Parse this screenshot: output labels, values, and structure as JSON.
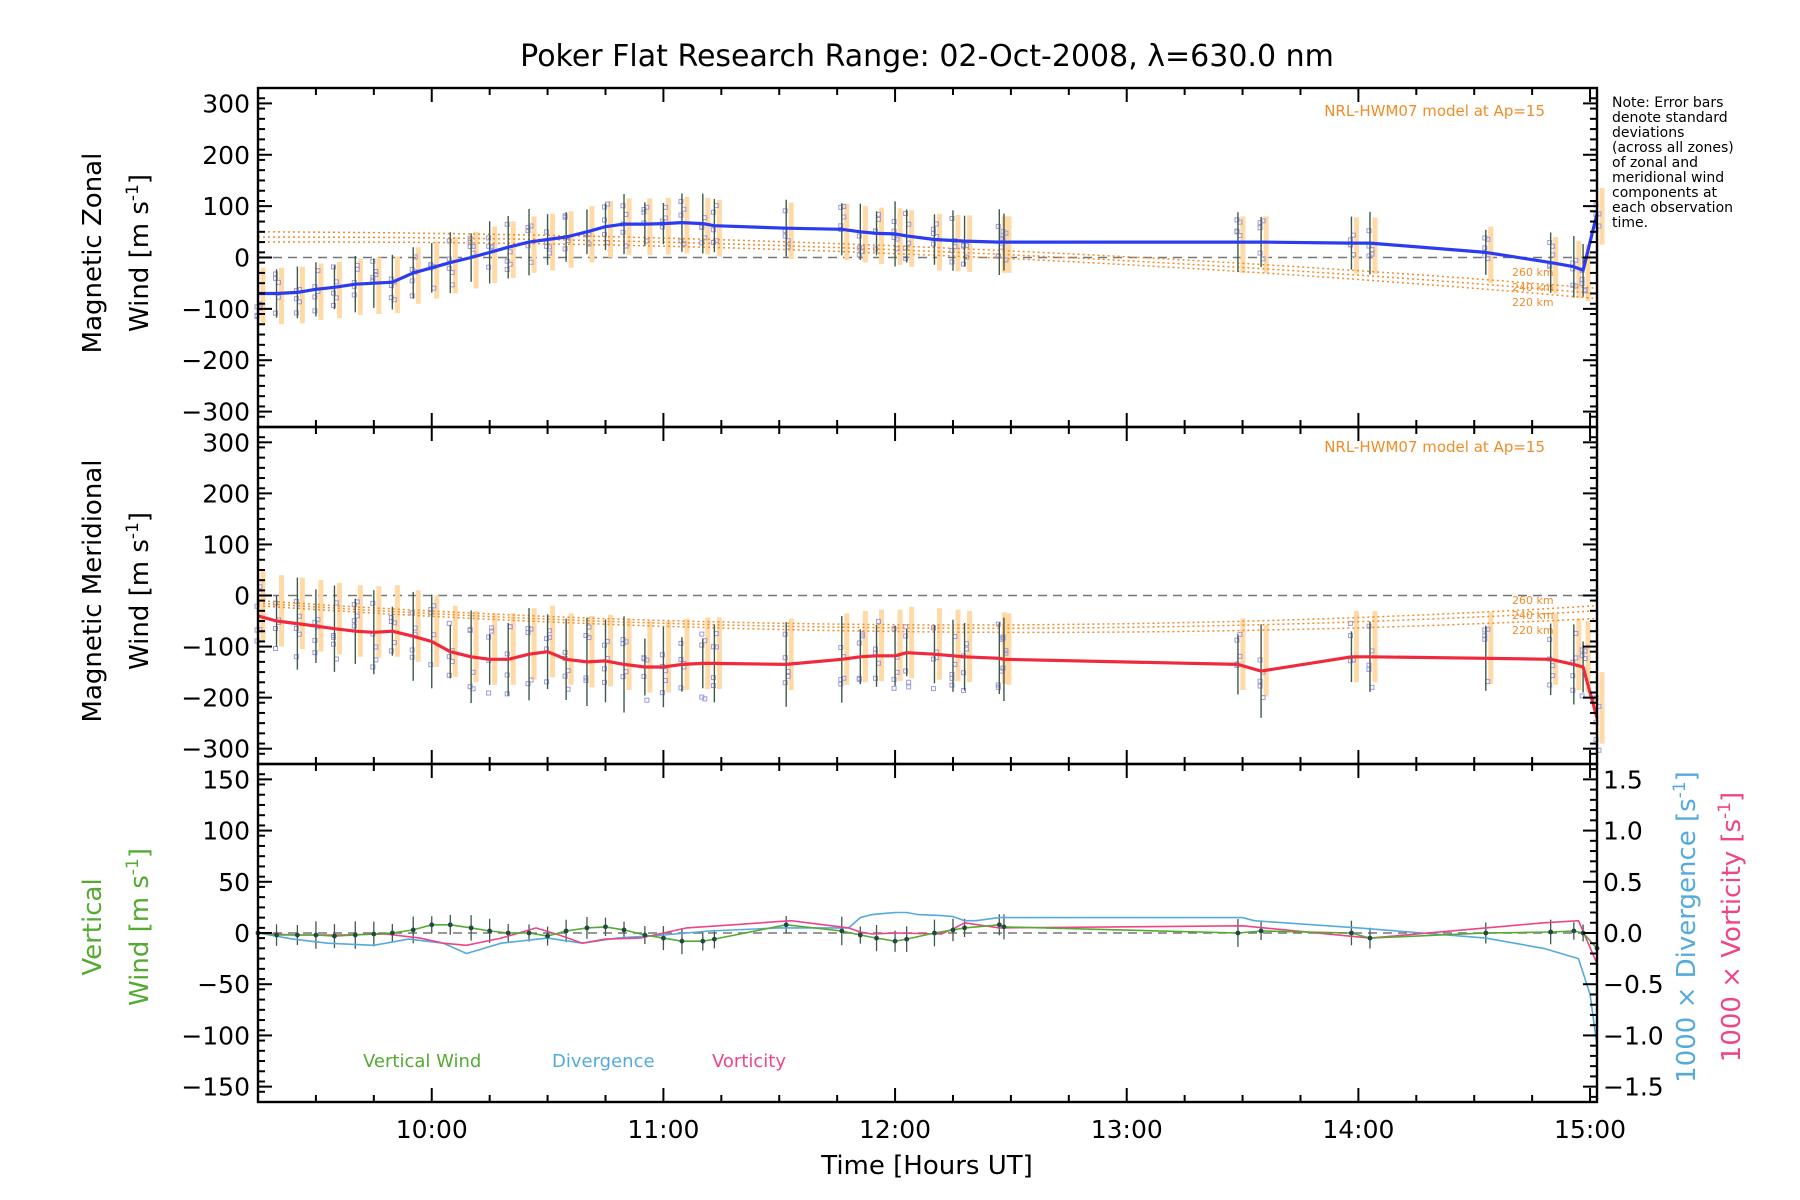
{
  "title": "Poker Flat Research Range: 02-Oct-2008, λ=630.0 nm",
  "note_lines": [
    "Note: Error bars",
    "denote standard",
    "deviations",
    "(across all zones)",
    "of zonal and",
    "meridional wind",
    "components at",
    "each observation",
    "time."
  ],
  "colors": {
    "zonal": "#2b3cf0",
    "meridional": "#f02a3c",
    "vertical": "#55aa33",
    "divergence": "#55aadd",
    "vorticity": "#ee4488",
    "model": "#f08c28",
    "model_bar": "#ffd9a6",
    "scatter": "#9f99dc",
    "errbar": "#3e5a4a",
    "marker": "#1f4a44",
    "zero_line": "#777777",
    "frame": "#000000"
  },
  "chart_data": [
    {
      "type": "line",
      "panel": "zonal",
      "ylabel_line1": "Magnetic Zonal",
      "ylabel_line2_word": "Wind",
      "ylabel_units": "[m s",
      "ylabel_units_exp": "-1",
      "ylabel_units_close": "]",
      "xlim": [
        9.25,
        15.03
      ],
      "ylim": [
        -330,
        330
      ],
      "yticks": [
        -300,
        -200,
        -100,
        0,
        100,
        200,
        300
      ],
      "ytick_labels": [
        "−300",
        "−200",
        "−100",
        "0",
        "100",
        "200",
        "300"
      ],
      "model_label": "NRL-HWM07 model at Ap=15",
      "model_altitudes": [
        "260 km",
        "240 km",
        "220 km"
      ],
      "series": [
        {
          "x": [
            9.25,
            9.33,
            9.42,
            9.5,
            9.58,
            9.67,
            9.75,
            9.83,
            9.92,
            10.0,
            10.08,
            10.17,
            10.25,
            10.33,
            10.42,
            10.5,
            10.58,
            10.67,
            10.75,
            10.83,
            10.92,
            11.0,
            11.08,
            11.17,
            11.22,
            11.53,
            11.77,
            11.85,
            11.92,
            12.0,
            12.05,
            12.17,
            12.25,
            12.3,
            12.45,
            12.47,
            13.48,
            13.58,
            13.97,
            14.05,
            14.55,
            14.83,
            14.93,
            14.97,
            15.03
          ],
          "y": [
            -70,
            -70,
            -68,
            -62,
            -58,
            -52,
            -50,
            -48,
            -30,
            -20,
            -10,
            0,
            10,
            20,
            30,
            35,
            40,
            50,
            60,
            65,
            65,
            66,
            68,
            66,
            62,
            57,
            55,
            50,
            47,
            46,
            42,
            35,
            33,
            32,
            30,
            30,
            30,
            30,
            28,
            28,
            10,
            -10,
            -18,
            -25,
            85
          ]
        }
      ]
    },
    {
      "type": "line",
      "panel": "meridional",
      "ylabel_line1": "Magnetic Meridional",
      "ylabel_line2_word": "Wind",
      "ylabel_units": "[m s",
      "ylabel_units_exp": "-1",
      "ylabel_units_close": "]",
      "xlim": [
        9.25,
        15.03
      ],
      "ylim": [
        -330,
        330
      ],
      "yticks": [
        -300,
        -200,
        -100,
        0,
        100,
        200,
        300
      ],
      "ytick_labels": [
        "−300",
        "−200",
        "−100",
        "0",
        "100",
        "200",
        "300"
      ],
      "model_label": "NRL-HWM07 model at Ap=15",
      "model_altitudes": [
        "260 km",
        "240 km",
        "220 km"
      ],
      "series": [
        {
          "x": [
            9.25,
            9.33,
            9.42,
            9.5,
            9.58,
            9.67,
            9.75,
            9.83,
            9.92,
            10.0,
            10.08,
            10.17,
            10.25,
            10.33,
            10.42,
            10.5,
            10.58,
            10.67,
            10.75,
            10.83,
            10.92,
            11.0,
            11.08,
            11.17,
            11.22,
            11.53,
            11.77,
            11.85,
            11.92,
            12.0,
            12.05,
            12.17,
            12.25,
            12.3,
            12.45,
            12.47,
            13.48,
            13.58,
            13.97,
            14.05,
            14.55,
            14.83,
            14.93,
            14.97,
            15.03
          ],
          "y": [
            -40,
            -50,
            -55,
            -60,
            -65,
            -70,
            -72,
            -70,
            -80,
            -90,
            -110,
            -120,
            -125,
            -125,
            -115,
            -110,
            -125,
            -130,
            -128,
            -135,
            -140,
            -140,
            -135,
            -133,
            -133,
            -135,
            -125,
            -120,
            -118,
            -118,
            -112,
            -115,
            -118,
            -120,
            -123,
            -125,
            -135,
            -148,
            -120,
            -120,
            -123,
            -125,
            -135,
            -140,
            -240
          ]
        }
      ]
    },
    {
      "type": "line",
      "panel": "vertical",
      "ylabel_line1": "Vertical",
      "ylabel_line2_word": "Wind",
      "ylabel_units": "[m s",
      "ylabel_units_exp": "-1",
      "ylabel_units_close": "]",
      "xlim": [
        9.25,
        15.03
      ],
      "ylim": [
        -165,
        165
      ],
      "yticks": [
        -150,
        -100,
        -50,
        0,
        50,
        100,
        150
      ],
      "ytick_labels": [
        "−150",
        "−100",
        "−50",
        "0",
        "50",
        "100",
        "150"
      ],
      "y2lim": [
        -1.65,
        1.65
      ],
      "y2ticks": [
        -1.5,
        -1.0,
        -0.5,
        0.0,
        0.5,
        1.0,
        1.5
      ],
      "y2tick_labels": [
        "−1.5",
        "−1.0",
        "−0.5",
        "0.0",
        "0.5",
        "1.0",
        "1.5"
      ],
      "y2label_div_word": "1000 × Divergence",
      "y2label_vort_word": "1000 × Vorticity",
      "y2label_units": "[s",
      "y2label_units_exp": "-1",
      "y2label_units_close": "]",
      "legend_position": "bottom-left",
      "legend": [
        "Vertical Wind",
        "Divergence",
        "Vorticity"
      ],
      "series": [
        {
          "name": "Vertical Wind",
          "axis": "left",
          "x": [
            9.25,
            9.33,
            9.42,
            9.5,
            9.58,
            9.67,
            9.75,
            9.83,
            9.92,
            10.0,
            10.08,
            10.17,
            10.25,
            10.33,
            10.42,
            10.5,
            10.58,
            10.67,
            10.75,
            10.83,
            10.92,
            11.0,
            11.08,
            11.17,
            11.22,
            11.53,
            11.77,
            11.85,
            11.92,
            12.0,
            12.05,
            12.17,
            12.25,
            12.3,
            12.45,
            12.47,
            13.48,
            13.58,
            13.97,
            14.05,
            14.55,
            14.83,
            14.93,
            14.97,
            15.03
          ],
          "y": [
            0,
            -2,
            -2,
            -2,
            -3,
            -2,
            -1,
            0,
            3,
            8,
            8,
            5,
            2,
            0,
            0,
            -3,
            2,
            5,
            6,
            3,
            -2,
            -5,
            -8,
            -8,
            -6,
            8,
            2,
            -2,
            -5,
            -8,
            -6,
            0,
            3,
            5,
            8,
            6,
            0,
            2,
            0,
            -5,
            0,
            1,
            2,
            0,
            -15
          ]
        },
        {
          "name": "Divergence",
          "axis": "right",
          "x": [
            9.25,
            9.4,
            9.55,
            9.75,
            9.9,
            10.05,
            10.15,
            10.3,
            10.5,
            10.65,
            10.8,
            11.0,
            11.2,
            11.5,
            11.8,
            11.85,
            11.9,
            12.0,
            12.05,
            12.1,
            12.2,
            12.25,
            12.3,
            12.35,
            12.45,
            13.5,
            13.55,
            14.0,
            14.55,
            14.8,
            14.95,
            15.0,
            15.03
          ],
          "y": [
            0.0,
            -0.06,
            -0.1,
            -0.12,
            -0.06,
            -0.1,
            -0.2,
            -0.1,
            -0.05,
            -0.1,
            -0.05,
            -0.02,
            0.02,
            0.05,
            0.05,
            0.15,
            0.18,
            0.2,
            0.2,
            0.18,
            0.17,
            0.16,
            0.12,
            0.12,
            0.15,
            0.15,
            0.12,
            0.05,
            -0.05,
            -0.15,
            -0.25,
            -0.6,
            -1.1
          ]
        },
        {
          "name": "Vorticity",
          "axis": "right",
          "x": [
            9.25,
            9.4,
            9.6,
            9.8,
            9.95,
            10.05,
            10.15,
            10.3,
            10.45,
            10.55,
            10.65,
            10.75,
            10.9,
            11.1,
            11.3,
            11.55,
            11.8,
            11.85,
            11.9,
            12.0,
            12.2,
            12.25,
            12.3,
            12.45,
            13.5,
            14.05,
            14.55,
            14.8,
            14.95,
            15.03
          ],
          "y": [
            0.0,
            -0.02,
            -0.02,
            -0.01,
            -0.05,
            -0.1,
            -0.12,
            -0.05,
            0.05,
            -0.02,
            -0.1,
            -0.06,
            -0.05,
            0.05,
            0.08,
            0.12,
            0.05,
            0.01,
            -0.01,
            0.0,
            -0.01,
            0.04,
            0.1,
            0.05,
            0.07,
            -0.05,
            0.05,
            0.1,
            0.12,
            -0.3
          ]
        }
      ]
    }
  ],
  "xaxis": {
    "ticks": [
      10,
      11,
      12,
      13,
      14,
      15
    ],
    "tick_labels": [
      "10:00",
      "11:00",
      "12:00",
      "13:00",
      "14:00",
      "15:00"
    ],
    "label": "Time [Hours UT]"
  }
}
